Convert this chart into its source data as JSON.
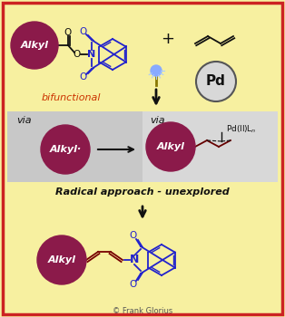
{
  "bg_color": "#f7f0a0",
  "border_color": "#cc2222",
  "alkyl_color": "#8b1a4a",
  "alkyl_text": "#ffffff",
  "blue": "#2222cc",
  "red_label": "#cc3300",
  "black": "#111111",
  "gray_box": "#cccccc",
  "gray_box_right": "#dddddd",
  "title": "Radical approach - unexplored",
  "bifunctional": "bifunctional",
  "pd_text": "Pd",
  "via": "via",
  "copyright": "© Frank Glorius"
}
